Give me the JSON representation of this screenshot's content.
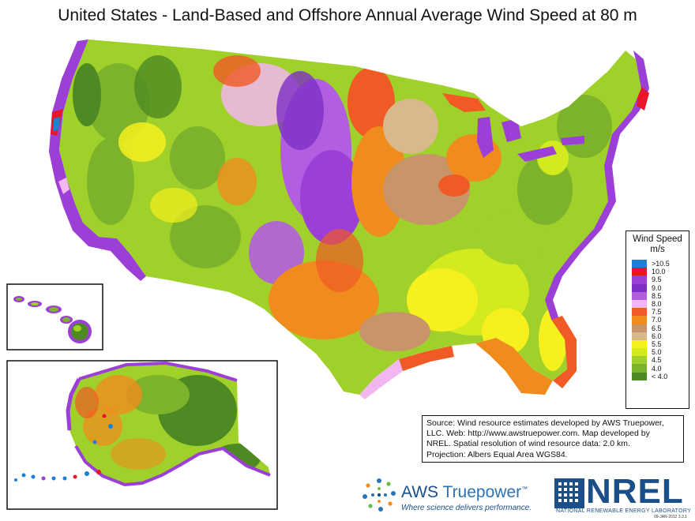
{
  "title": "United States - Land-Based and Offshore Annual Average Wind Speed at 80 m",
  "legend": {
    "title_line1": "Wind Speed",
    "title_line2": "m/s",
    "entries": [
      {
        "label": ">10.5",
        "color": "#1e7fd8"
      },
      {
        "label": "10.0",
        "color": "#e8152b"
      },
      {
        "label": "9.5",
        "color": "#9b3fd6"
      },
      {
        "label": "9.0",
        "color": "#7d2fc6"
      },
      {
        "label": "8.5",
        "color": "#b15ee0"
      },
      {
        "label": "8.0",
        "color": "#f2b7f0"
      },
      {
        "label": "7.5",
        "color": "#f05a24"
      },
      {
        "label": "7.0",
        "color": "#f08c1e"
      },
      {
        "label": "6.5",
        "color": "#c8956a"
      },
      {
        "label": "6.0",
        "color": "#d9b98c"
      },
      {
        "label": "5.5",
        "color": "#f5f01e"
      },
      {
        "label": "5.0",
        "color": "#d2ea1e"
      },
      {
        "label": "4.5",
        "color": "#9fd12a"
      },
      {
        "label": "4.0",
        "color": "#7cb32a"
      },
      {
        "label": "< 4.0",
        "color": "#4e8a23"
      }
    ]
  },
  "source": {
    "line1": "Source: Wind resource estimates developed by AWS Truepower,",
    "line2": "LLC.  Web: http://www.awstruepower.com. Map developed by",
    "line3": "NREL.  Spatial resolution of wind resource data: 2.0 km.",
    "line4": "Projection: Albers Equal Area WGS84."
  },
  "aws": {
    "name_part1": "AWS ",
    "name_part2": "Truepower",
    "tm": "™",
    "tagline": "Where science delivers performance."
  },
  "nrel": {
    "name": "NREL",
    "subtitle": "NATIONAL RENEWABLE ENERGY LABORATORY"
  },
  "datestamp": "09-JAN-2012 3.3.1",
  "colors": {
    "offshore_purple": "#9b3fd6",
    "offshore_orange": "#f08c1e",
    "land_green": "#9fd12a",
    "land_yellow": "#f5f01e",
    "land_orange": "#f08c1e",
    "land_purple": "#b15ee0",
    "land_brown": "#c8956a",
    "land_darkgreen": "#4e8a23"
  }
}
